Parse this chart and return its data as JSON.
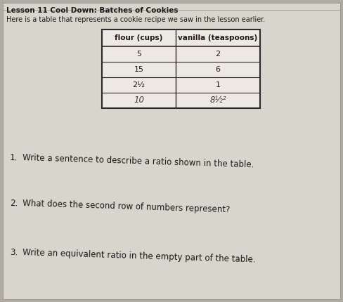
{
  "title": "Lesson 11 Cool Down: Batches of Cookies",
  "subtitle": "Here is a table that represents a cookie recipe we saw in the lesson earlier.",
  "col1_header": "flour (cups)",
  "col2_header": "vanilla (teaspoons)",
  "rows": [
    [
      "5",
      "2"
    ],
    [
      "15",
      "6"
    ],
    [
      "2½",
      "1"
    ],
    [
      "10",
      "8½²"
    ]
  ],
  "questions": [
    [
      "1.",
      "Write a sentence to describe a ratio shown in the table."
    ],
    [
      "2.",
      "What does the second row of numbers represent?"
    ],
    [
      "3.",
      "Write an equivalent ratio in the empty part of the table."
    ]
  ],
  "outer_bg": "#b0aca4",
  "paper_bg": "#d8d5cc",
  "table_bg": "#ede9e2",
  "text_color": "#1a1a1a",
  "border_color": "#2a2a2a",
  "title_fontsize": 7.5,
  "subtitle_fontsize": 7.0,
  "header_fontsize": 7.5,
  "cell_fontsize": 8.0,
  "question_num_fontsize": 8.5,
  "question_text_fontsize": 8.5
}
